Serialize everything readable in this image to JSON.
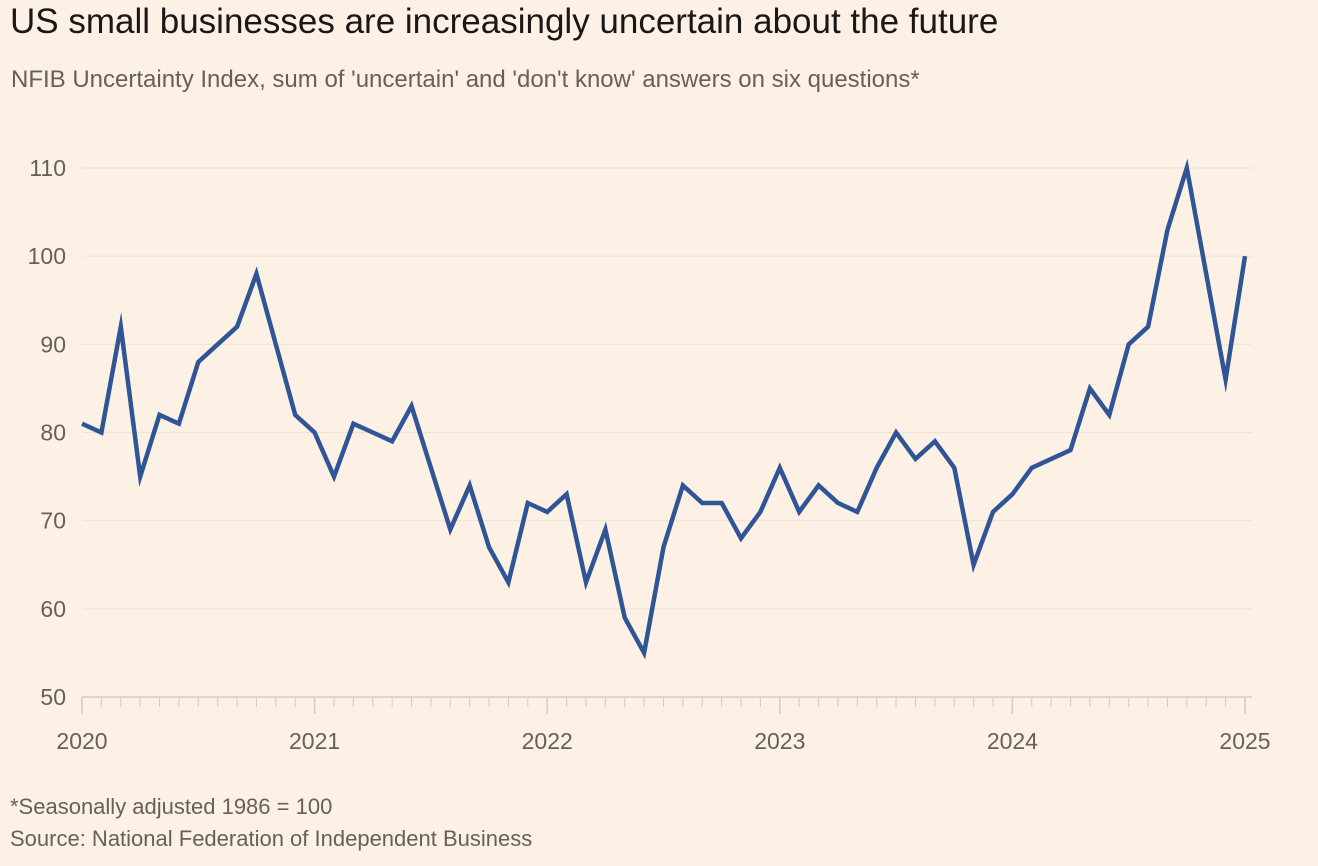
{
  "title": "US small businesses are increasingly uncertain about the future",
  "subtitle": "NFIB Uncertainty Index, sum of 'uncertain' and 'don't know' answers on six questions*",
  "footnote": "*Seasonally adjusted 1986 = 100",
  "source": "Source: National Federation of Independent Business",
  "colors": {
    "background": "#fdf1e5",
    "line": "#2f5597",
    "grid": "#f0e3d6",
    "axis": "#d9ccc0"
  },
  "chart_data": {
    "type": "line",
    "title": "US small businesses are increasingly uncertain about the future",
    "xlabel": "",
    "ylabel": "",
    "ylim": [
      50,
      110
    ],
    "xlim": [
      "2020-01",
      "2025-01"
    ],
    "yticks": [
      50,
      60,
      70,
      80,
      90,
      100,
      110
    ],
    "xtick_labels": [
      "2020",
      "2021",
      "2022",
      "2023",
      "2024",
      "2025"
    ],
    "grid": "horizontal",
    "legend": "none",
    "series": [
      {
        "x": [
          "2020-01",
          "2020-02",
          "2020-03",
          "2020-04",
          "2020-05",
          "2020-06",
          "2020-07",
          "2020-08",
          "2020-09",
          "2020-10",
          "2020-11",
          "2020-12",
          "2021-01",
          "2021-02",
          "2021-03",
          "2021-04",
          "2021-05",
          "2021-06",
          "2021-07",
          "2021-08",
          "2021-09",
          "2021-10",
          "2021-11",
          "2021-12",
          "2022-01",
          "2022-02",
          "2022-03",
          "2022-04",
          "2022-05",
          "2022-06",
          "2022-07",
          "2022-08",
          "2022-09",
          "2022-10",
          "2022-11",
          "2022-12",
          "2023-01",
          "2023-02",
          "2023-03",
          "2023-04",
          "2023-05",
          "2023-06",
          "2023-07",
          "2023-08",
          "2023-09",
          "2023-10",
          "2023-11",
          "2023-12",
          "2024-01",
          "2024-02",
          "2024-03",
          "2024-04",
          "2024-05",
          "2024-06",
          "2024-07",
          "2024-08",
          "2024-09",
          "2024-10",
          "2024-11",
          "2024-12",
          "2025-01"
        ],
        "values": [
          81,
          80,
          92,
          75,
          82,
          81,
          88,
          90,
          92,
          98,
          90,
          82,
          80,
          75,
          81,
          80,
          79,
          83,
          76,
          69,
          74,
          67,
          63,
          72,
          71,
          73,
          63,
          69,
          59,
          55,
          67,
          74,
          72,
          72,
          68,
          71,
          76,
          71,
          74,
          72,
          71,
          76,
          80,
          77,
          79,
          76,
          65,
          71,
          73,
          76,
          77,
          78,
          85,
          82,
          90,
          92,
          103,
          110,
          98,
          86,
          100
        ]
      }
    ]
  }
}
